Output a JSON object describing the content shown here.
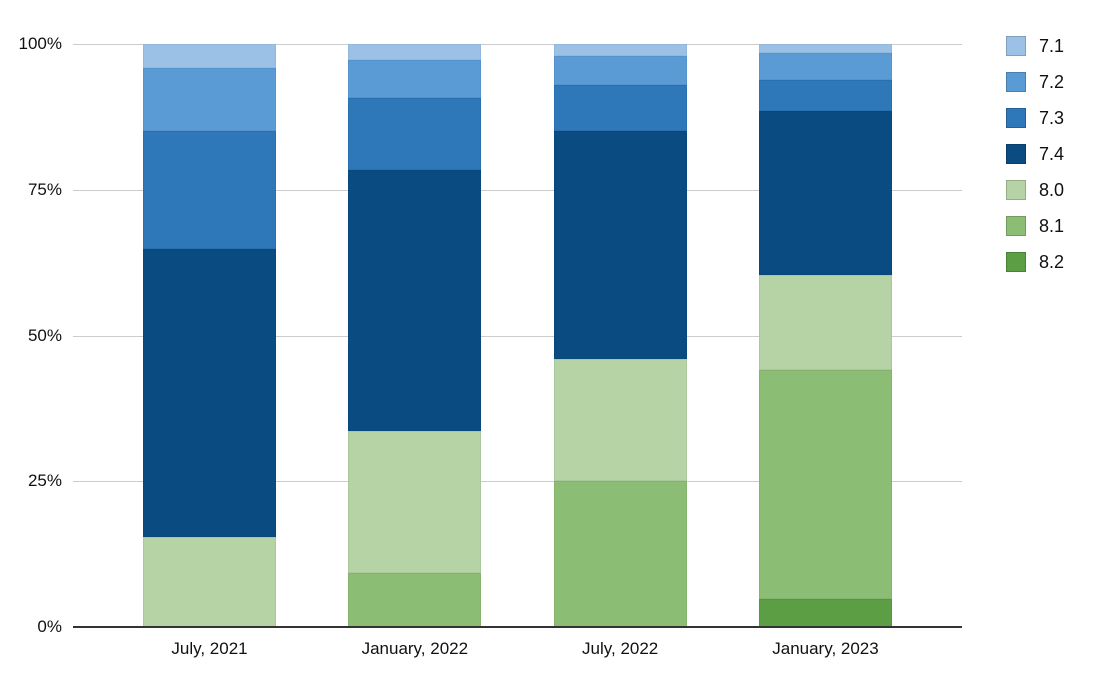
{
  "chart_data": {
    "type": "bar",
    "subtype": "stacked-percent",
    "title": "",
    "xlabel": "",
    "ylabel": "",
    "categories": [
      "July, 2021",
      "January, 2022",
      "July, 2022",
      "January, 2023"
    ],
    "series": [
      {
        "name": "7.1",
        "color": "#9bc2e6",
        "values": [
          4.2,
          2.7,
          2.1,
          1.6
        ]
      },
      {
        "name": "7.2",
        "color": "#5b9bd5",
        "values": [
          10.8,
          6.6,
          5.0,
          4.6
        ]
      },
      {
        "name": "7.3",
        "color": "#2e77b8",
        "values": [
          20.2,
          12.3,
          7.8,
          5.3
        ]
      },
      {
        "name": "7.4",
        "color": "#0a4c81",
        "values": [
          49.3,
          44.8,
          39.1,
          28.2
        ]
      },
      {
        "name": "8.0",
        "color": "#b5d3a5",
        "values": [
          15.5,
          24.4,
          21.0,
          16.3
        ]
      },
      {
        "name": "8.1",
        "color": "#8bbd75",
        "values": [
          0,
          9.2,
          25.0,
          39.2
        ]
      },
      {
        "name": "8.2",
        "color": "#5c9e44",
        "values": [
          0,
          0,
          0,
          4.8
        ]
      }
    ],
    "y_ticks": [
      {
        "label": "100%",
        "value": 100
      },
      {
        "label": "75%",
        "value": 75
      },
      {
        "label": "50%",
        "value": 50
      },
      {
        "label": "25%",
        "value": 25
      },
      {
        "label": "0%",
        "value": 0
      }
    ],
    "ylim": [
      0,
      100
    ],
    "grid": true,
    "legend_position": "right"
  },
  "colors": {
    "background": "#ffffff",
    "gridline": "#cccccc",
    "axis": "#333333",
    "text": "#111111"
  }
}
